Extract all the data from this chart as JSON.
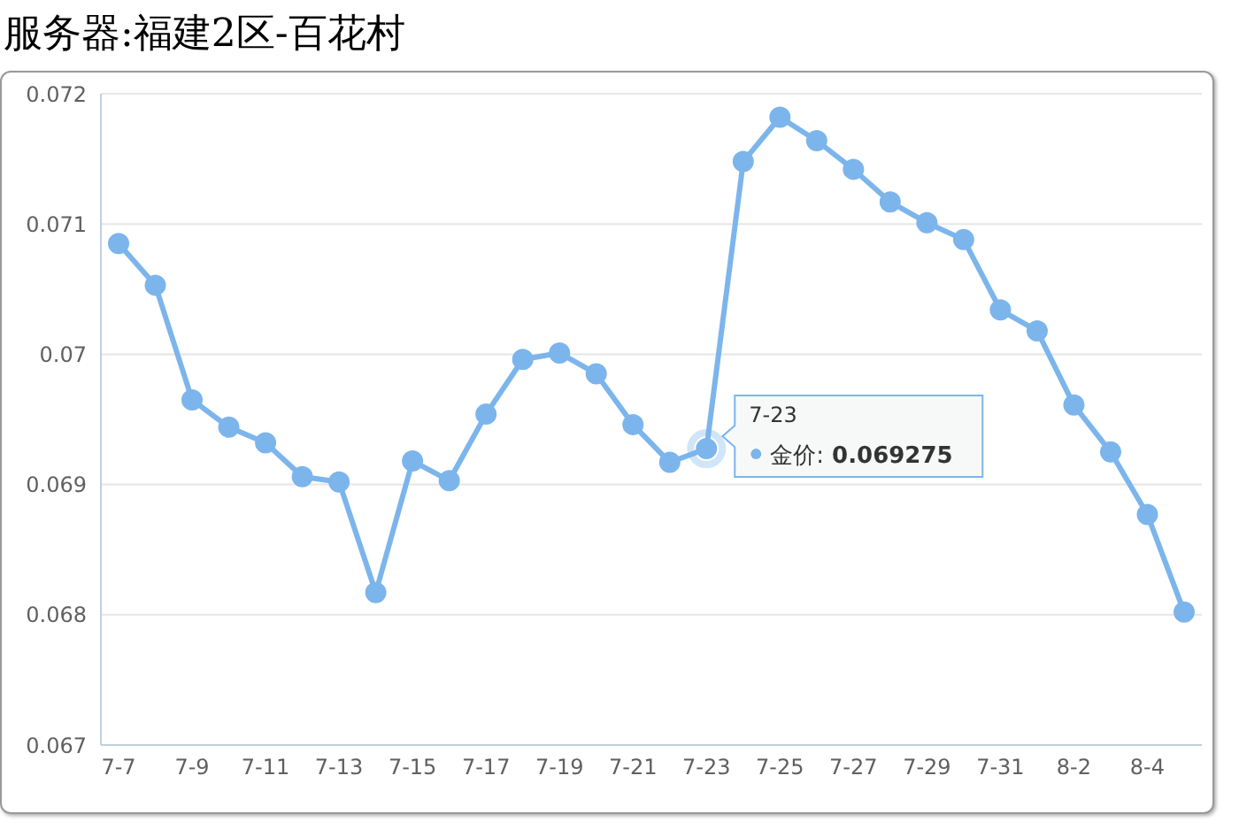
{
  "chart_data": {
    "type": "line",
    "title": "服务器:福建2区-百花村",
    "categories": [
      "7-7",
      null,
      "7-9",
      null,
      "7-11",
      null,
      "7-13",
      null,
      "7-15",
      null,
      "7-17",
      null,
      "7-19",
      null,
      "7-21",
      null,
      "7-23",
      null,
      "7-25",
      null,
      "7-27",
      null,
      "7-29",
      null,
      "7-31",
      null,
      "8-2",
      null,
      "8-4",
      null
    ],
    "series": [
      {
        "color": "#7cb5ec",
        "values": [
          0.07085,
          0.07053,
          0.06965,
          0.06944,
          0.06932,
          0.06906,
          0.06902,
          0.06817,
          0.06918,
          0.06903,
          0.06954,
          0.06996,
          0.07001,
          0.06985,
          0.06946,
          0.06917,
          0.069275,
          0.07148,
          0.07182,
          0.07164,
          0.07142,
          0.07117,
          0.07101,
          0.07088,
          0.07034,
          0.07018,
          0.06961,
          0.06925,
          0.06877,
          0.06802
        ]
      }
    ],
    "ylim": [
      0.067,
      0.072
    ],
    "yticks": [
      0.067,
      0.068,
      0.069,
      0.07,
      0.071,
      0.072
    ],
    "grid": "y",
    "marker": "circle",
    "line_style": "solid",
    "annotations": [
      "7-23",
      {
        "text": "金价: 0.069275",
        "x": "7-23",
        "y": 0.069275
      }
    ]
  }
}
